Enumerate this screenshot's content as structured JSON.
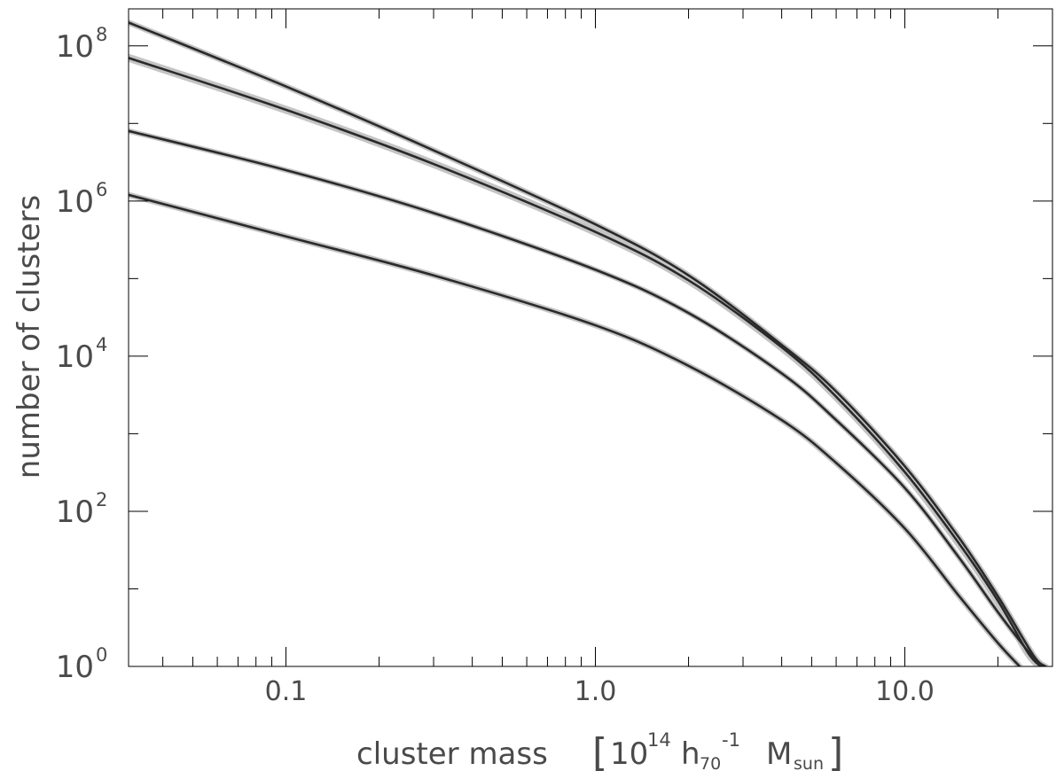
{
  "chart_data": {
    "type": "line",
    "title": "",
    "xlabel": "cluster mass",
    "xunit": {
      "bracket_open": "[",
      "base": "10",
      "exp": "14",
      "h": "h",
      "h_sub": "70",
      "h_exp": "-1",
      "m": "M",
      "m_sub": "sun",
      "bracket_close": "]"
    },
    "ylabel": "number of clusters",
    "xscale": "log",
    "yscale": "log",
    "xlim": [
      0.031,
      30
    ],
    "ylim": [
      1,
      300000000
    ],
    "grid": false,
    "legend": "none",
    "x_tick_labels": [
      {
        "value": 0.1,
        "label": "0.1"
      },
      {
        "value": 1.0,
        "label": "1.0"
      },
      {
        "value": 10.0,
        "label": "10.0"
      }
    ],
    "y_tick_labels": [
      {
        "value": 1,
        "base": "10",
        "exp": "0"
      },
      {
        "value": 100,
        "base": "10",
        "exp": "2"
      },
      {
        "value": 10000,
        "base": "10",
        "exp": "4"
      },
      {
        "value": 1000000,
        "base": "10",
        "exp": "6"
      },
      {
        "value": 100000000,
        "base": "10",
        "exp": "8"
      }
    ],
    "series": [
      {
        "x": [
          0.031,
          0.1,
          0.3,
          1.0,
          2.0,
          4.0,
          6.0,
          10.0,
          15.0,
          20.0,
          26.0,
          28.5
        ],
        "y": [
          200000000,
          30000000,
          4500000,
          500000,
          110000,
          14000,
          3500,
          380,
          45,
          8,
          1.4,
          1
        ],
        "band": 0.06
      },
      {
        "x": [
          0.031,
          0.1,
          0.3,
          1.0,
          2.0,
          4.0,
          6.0,
          10.0,
          15.0,
          20.0,
          25.0,
          27.5
        ],
        "y": [
          70000000,
          15000000,
          3000000,
          400000,
          95000,
          13000,
          3000,
          320,
          38,
          7,
          1.5,
          1
        ],
        "band": 0.1
      },
      {
        "x": [
          0.031,
          0.1,
          0.3,
          1.0,
          2.0,
          4.0,
          6.0,
          10.0,
          15.0,
          20.0,
          26.0,
          28.0
        ],
        "y": [
          8000000,
          2500000,
          700000,
          130000,
          36000,
          6000,
          1500,
          200,
          25,
          5,
          1.3,
          1
        ],
        "band": 0.05
      },
      {
        "x": [
          0.031,
          0.1,
          0.3,
          1.0,
          2.0,
          4.0,
          6.0,
          10.0,
          15.0,
          20.0,
          23.5
        ],
        "y": [
          1200000,
          350000,
          110000,
          25000,
          7500,
          1500,
          420,
          60,
          8,
          2,
          1
        ],
        "band": 0.06
      }
    ],
    "colors": {
      "line": "#2a2a2a",
      "band": "#c4c4c4",
      "axis": "#000000",
      "text": "#4a4a4a"
    }
  }
}
